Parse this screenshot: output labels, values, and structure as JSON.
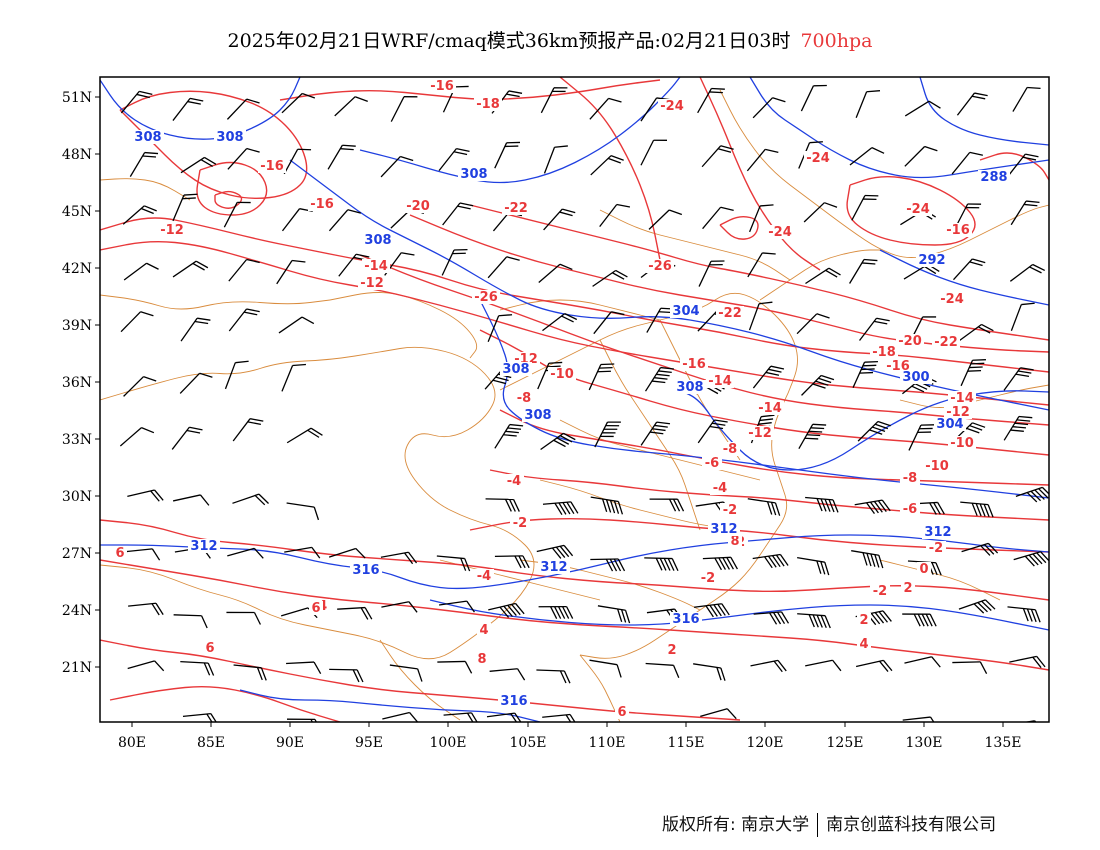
{
  "title": {
    "main": "2025年02月21日WRF/cmaq模式36km预报产品:02月21日03时",
    "level": "700hpa"
  },
  "colors": {
    "temperature": "#e8383a",
    "height": "#2040e0",
    "boundary": "#d98c3e",
    "wind": "#000000"
  },
  "axes": {
    "lat_labels": [
      "51N",
      "48N",
      "45N",
      "42N",
      "39N",
      "36N",
      "33N",
      "30N",
      "27N",
      "24N",
      "21N"
    ],
    "lon_labels": [
      "80E",
      "85E",
      "90E",
      "95E",
      "100E",
      "105E",
      "110E",
      "115E",
      "120E",
      "125E",
      "130E",
      "135E"
    ]
  },
  "temperature_labels": [
    "-16",
    "-18",
    "-24",
    "-16",
    "-16",
    "-20",
    "-22",
    "-24",
    "-12",
    "-26",
    "-24",
    "-14",
    "-12",
    "-26",
    "-24",
    "-16",
    "-22",
    "-24",
    "-20",
    "-22",
    "-12",
    "-10",
    "-16",
    "-14",
    "-18",
    "-16",
    "-14",
    "-8",
    "-12",
    "-14",
    "-12",
    "-10",
    "-8",
    "-6",
    "-10",
    "-4",
    "-4",
    "-2",
    "-8",
    "-2",
    "-6",
    "-4",
    "-2",
    "-4",
    "-2",
    "-2",
    "0",
    "-2",
    "2",
    "2",
    "4",
    "4",
    "2",
    "6",
    "4",
    "6",
    "6",
    "6",
    "8",
    "8"
  ],
  "height_labels": [
    "308",
    "308",
    "308",
    "308",
    "288",
    "304",
    "292",
    "300",
    "308",
    "308",
    "304",
    "308",
    "312",
    "312",
    "312",
    "316",
    "312",
    "316",
    "316"
  ],
  "footer": {
    "copyright": "版权所有: 南京大学",
    "company": "南京创蓝科技有限公司"
  }
}
